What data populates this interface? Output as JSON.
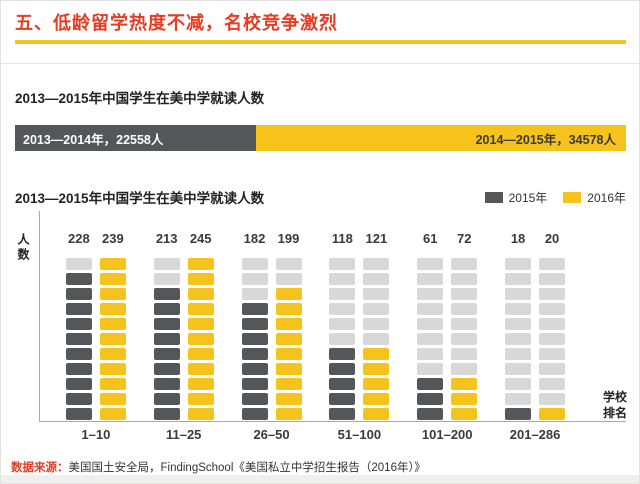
{
  "colors": {
    "red": "#e63c23",
    "gold": "#f6c21c",
    "dark_gray": "#55565a",
    "light_gray": "#d8d8d8"
  },
  "header": {
    "title": "五、低龄留学热度不减，名校竞争激烈"
  },
  "source": {
    "prefix": "数据来源：",
    "text": "美国国土安全局，FindingSchool《美国私立中学招生报告（2016年）》"
  },
  "chart_data": [
    {
      "type": "bar",
      "subtype": "horizontal_stacked",
      "title": "2013—2015年中国学生在美中学就读人数",
      "segments": [
        {
          "label": "2013—2014年，22558人",
          "value": 22558
        },
        {
          "label": "2014—2015年，34578人",
          "value": 34578
        }
      ]
    },
    {
      "type": "bar",
      "subtype": "grouped_segmented_columns",
      "title": "2013—2015年中国学生在美中学就读人数",
      "ylabel": "人数",
      "xlabel": "学校排名",
      "legend": [
        "2015年",
        "2016年"
      ],
      "categories": [
        "1–10",
        "11–25",
        "26–50",
        "51–100",
        "101–200",
        "201–286"
      ],
      "series": [
        {
          "name": "2015年",
          "values": [
            228,
            213,
            182,
            118,
            61,
            18
          ]
        },
        {
          "name": "2016年",
          "values": [
            239,
            245,
            199,
            121,
            72,
            20
          ]
        }
      ],
      "ylim": [
        0,
        250
      ],
      "segments_per_column": 11,
      "grid": false,
      "legend_position": "top-right"
    }
  ]
}
